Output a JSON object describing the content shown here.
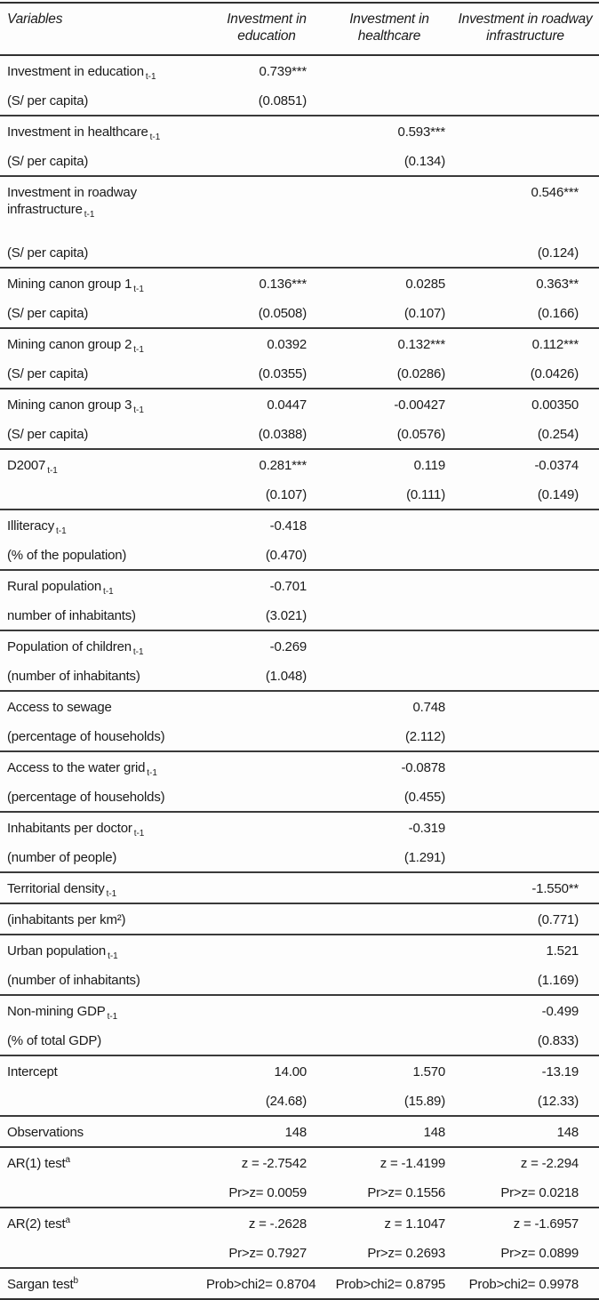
{
  "page": {
    "background": "#fdfdfd",
    "text_color": "#1b1b1b",
    "rule_color": "#303030"
  },
  "table": {
    "header": {
      "variables_label": "Variables",
      "col_education": "Investment in education",
      "col_healthcare": "Investment in healthcare",
      "col_roadway": "Investment in roadway infrastructure"
    },
    "groups": [
      {
        "rows": [
          {
            "label": "Investment in education",
            "sub": "t-1",
            "cells": [
              "0.739***",
              "",
              ""
            ]
          },
          {
            "label": "(S/ per capita)",
            "cells": [
              "(0.0851)",
              "",
              ""
            ]
          }
        ]
      },
      {
        "rows": [
          {
            "label": "Investment in healthcare",
            "sub": "t-1",
            "cells": [
              "",
              "0.593***",
              ""
            ]
          },
          {
            "label": "(S/ per capita)",
            "cells": [
              "",
              "(0.134)",
              ""
            ]
          }
        ]
      },
      {
        "rows": [
          {
            "label": "Investment in roadway infrastructure",
            "sub": "t-1",
            "cells": [
              "",
              "",
              "0.546***"
            ]
          },
          {
            "label": "(S/ per capita)",
            "gap": true,
            "cells": [
              "",
              "",
              "(0.124)"
            ]
          }
        ]
      },
      {
        "rows": [
          {
            "label": "Mining canon group 1",
            "sub": "t-1",
            "cells": [
              "0.136***",
              "0.0285",
              "0.363**"
            ]
          },
          {
            "label": "(S/ per capita)",
            "cells": [
              "(0.0508)",
              "(0.107)",
              "(0.166)"
            ]
          }
        ]
      },
      {
        "rows": [
          {
            "label": "Mining canon group 2",
            "sub": "t-1",
            "cells": [
              "0.0392",
              "0.132***",
              "0.112***"
            ]
          },
          {
            "label": "(S/ per capita)",
            "cells": [
              "(0.0355)",
              "(0.0286)",
              "(0.0426)"
            ]
          }
        ]
      },
      {
        "rows": [
          {
            "label": "Mining canon group 3",
            "sub": "t-1",
            "cells": [
              "0.0447",
              "-0.00427",
              "0.00350"
            ]
          },
          {
            "label": "(S/ per capita)",
            "cells": [
              "(0.0388)",
              "(0.0576)",
              "(0.254)"
            ]
          }
        ]
      },
      {
        "rows": [
          {
            "label": "D2007",
            "sub": "t-1",
            "cells": [
              "0.281***",
              "0.119",
              "-0.0374"
            ]
          },
          {
            "label": "",
            "cells": [
              "(0.107)",
              "(0.111)",
              "(0.149)"
            ]
          }
        ]
      },
      {
        "rows": [
          {
            "label": "Illiteracy",
            "sub": "t-1",
            "cells": [
              "-0.418",
              "",
              ""
            ]
          },
          {
            "label": "(% of the population)",
            "cells": [
              "(0.470)",
              "",
              ""
            ]
          }
        ]
      },
      {
        "rows": [
          {
            "label": "Rural population",
            "sub": "t-1",
            "cells": [
              "-0.701",
              "",
              ""
            ]
          },
          {
            "label": "number of inhabitants)",
            "cells": [
              "(3.021)",
              "",
              ""
            ]
          }
        ]
      },
      {
        "rows": [
          {
            "label": "Population of children",
            "sub": "t-1",
            "cells": [
              "-0.269",
              "",
              ""
            ]
          },
          {
            "label": "(number of inhabitants)",
            "cells": [
              "(1.048)",
              "",
              ""
            ]
          }
        ]
      },
      {
        "rows": [
          {
            "label": "Access to sewage",
            "cells": [
              "",
              "0.748",
              ""
            ]
          },
          {
            "label": "(percentage of households)",
            "cells": [
              "",
              "(2.112)",
              ""
            ]
          }
        ]
      },
      {
        "rows": [
          {
            "label": "Access to the water grid",
            "sub": "t-1",
            "cells": [
              "",
              "-0.0878",
              ""
            ]
          },
          {
            "label": "(percentage of households)",
            "cells": [
              "",
              "(0.455)",
              ""
            ]
          }
        ]
      },
      {
        "rows": [
          {
            "label": "Inhabitants per doctor",
            "sub": "t-1",
            "cells": [
              "",
              "-0.319",
              ""
            ]
          },
          {
            "label": "(number of people)",
            "cells": [
              "",
              "(1.291)",
              ""
            ]
          }
        ]
      },
      {
        "rows": [
          {
            "label": "Territorial density",
            "sub": "t-1",
            "cells": [
              "",
              "",
              "-1.550**"
            ]
          }
        ]
      },
      {
        "rows": [
          {
            "label": "(inhabitants per km²)",
            "cells": [
              "",
              "",
              "(0.771)"
            ]
          }
        ]
      },
      {
        "rows": [
          {
            "label": "Urban population",
            "sub": "t-1",
            "cells": [
              "",
              "",
              "1.521"
            ]
          },
          {
            "label": "(number of inhabitants)",
            "cells": [
              "",
              "",
              "(1.169)"
            ]
          }
        ]
      },
      {
        "rows": [
          {
            "label": "Non-mining GDP",
            "sub": "t-1",
            "cells": [
              "",
              "",
              "-0.499"
            ]
          },
          {
            "label": "(% of total GDP)",
            "cells": [
              "",
              "",
              "(0.833)"
            ]
          }
        ]
      },
      {
        "rows": [
          {
            "label": "Intercept",
            "cells": [
              "14.00",
              "1.570",
              "-13.19"
            ]
          },
          {
            "label": "",
            "cells": [
              "(24.68)",
              "(15.89)",
              "(12.33)"
            ]
          }
        ]
      },
      {
        "rows": [
          {
            "label": "Observations",
            "cells": [
              "148",
              "148",
              "148"
            ]
          }
        ]
      },
      {
        "rows": [
          {
            "label": "AR(1) test",
            "sup": "a",
            "cells": [
              "z = -2.7542",
              "z = -1.4199",
              "z = -2.294"
            ]
          },
          {
            "label": "",
            "cells": [
              "Pr>z= 0.0059",
              "Pr>z= 0.1556",
              "Pr>z= 0.0218"
            ]
          }
        ]
      },
      {
        "rows": [
          {
            "label": "AR(2) test",
            "sup": "a",
            "cells": [
              "z = -.2628",
              "z = 1.1047",
              "z = -1.6957"
            ]
          },
          {
            "label": "",
            "cells": [
              "Pr>z= 0.7927",
              "Pr>z= 0.2693",
              "Pr>z= 0.0899"
            ]
          }
        ]
      },
      {
        "rows": [
          {
            "label": "Sargan test",
            "sup": "b",
            "cells": [
              "Prob>chi2= 0.8704",
              "Prob>chi2= 0.8795",
              "Prob>chi2= 0.9978"
            ]
          }
        ]
      }
    ]
  }
}
